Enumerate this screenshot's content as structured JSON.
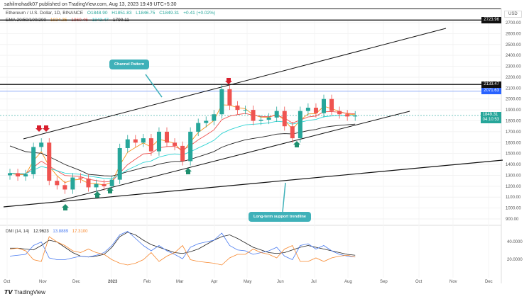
{
  "header": {
    "published": "sahilmohadk07 published on TradingView.com, Aug 13, 2023 19:49 UTC+5:30",
    "symbol": "Ethereum / U.S. Dollar, 1D, BINANCE",
    "open": "O1848.90",
    "high": "H1851.83",
    "low": "L1846.75",
    "close": "C1849.31",
    "change": "+0.41 (+0.02%)",
    "ema_label": "EMA 20/50/100/200",
    "ema_values": [
      "1834.35",
      "1860.46",
      "1843.47",
      "1790.11"
    ]
  },
  "currency": "USD",
  "colors": {
    "up": "#26a69a",
    "down": "#ef5350",
    "ema20": "#f7931a",
    "ema50": "#ef5350",
    "ema100": "#2ed3d3",
    "ema200": "#222222",
    "dmi_adx": "#222222",
    "dmi_plus": "#4a7bf0",
    "dmi_minus": "#f7872d",
    "callout": "#3fb1b9"
  },
  "levels": [
    {
      "value": 2723.96,
      "label": "2723.96",
      "color": "#111111"
    },
    {
      "value": 2133.47,
      "label": "2133.47",
      "color": "#111111"
    },
    {
      "value": 2071.63,
      "label": "2071.63",
      "color": "#2962ff"
    }
  ],
  "last_price": {
    "label": "1849.31",
    "countdown": "04:10:53"
  },
  "annotations": {
    "channel": "Channel Pattern",
    "support": "Long-term support trendline"
  },
  "dmi": {
    "label": "DMI (14, 14)",
    "values": [
      "12.9623",
      "13.8889",
      "17.3100"
    ],
    "ticks": [
      "40.0000",
      "20.0000"
    ]
  },
  "brand": "TradingView",
  "chart_data": {
    "type": "candlestick",
    "title": "Ethereum / U.S. Dollar, 1D, BINANCE",
    "ylim": [
      850,
      2780
    ],
    "y_ticks": [
      "2700.00",
      "2600.00",
      "2500.00",
      "2400.00",
      "2300.00",
      "2200.00",
      "2100.00",
      "2000.00",
      "1900.00",
      "1800.00",
      "1700.00",
      "1600.00",
      "1500.00",
      "1400.00",
      "1300.00",
      "1200.00",
      "1100.00",
      "1000.00",
      "900.00"
    ],
    "x_ticks": [
      "Oct",
      "Nov",
      "Dec",
      "2023",
      "Feb",
      "Mar",
      "Apr",
      "May",
      "Jun",
      "Jul",
      "Aug",
      "Sep",
      "Oct",
      "Nov",
      "Dec"
    ],
    "weekly_close": [
      1320,
      1290,
      1310,
      1560,
      1600,
      1250,
      1210,
      1170,
      1280,
      1270,
      1190,
      1220,
      1200,
      1260,
      1550,
      1630,
      1600,
      1640,
      1520,
      1700,
      1600,
      1570,
      1430,
      1700,
      1780,
      1800,
      1860,
      2090,
      1940,
      1900,
      1900,
      1800,
      1810,
      1830,
      1890,
      1750,
      1640,
      1890,
      1920,
      1870,
      2000,
      1890,
      1860,
      1840,
      1849
    ],
    "dmi_adx": [
      27,
      27,
      26,
      25,
      30,
      36,
      34,
      28,
      22,
      18,
      17,
      18,
      20,
      28,
      40,
      45,
      42,
      36,
      31,
      28,
      25,
      22,
      21,
      23,
      26,
      31,
      36,
      40,
      42,
      38,
      33,
      28,
      25,
      22,
      21,
      22,
      25,
      28,
      30,
      28,
      26,
      24,
      22,
      20,
      19
    ],
    "dmi_plus": [
      18,
      19,
      20,
      30,
      34,
      16,
      14,
      14,
      16,
      18,
      17,
      19,
      22,
      30,
      42,
      46,
      38,
      30,
      24,
      30,
      24,
      20,
      15,
      28,
      32,
      34,
      36,
      44,
      30,
      25,
      24,
      20,
      22,
      24,
      28,
      18,
      14,
      30,
      32,
      26,
      30,
      24,
      20,
      18,
      17
    ],
    "dmi_minus": [
      26,
      27,
      24,
      14,
      12,
      40,
      34,
      30,
      24,
      22,
      26,
      22,
      20,
      14,
      10,
      8,
      10,
      14,
      22,
      12,
      18,
      22,
      30,
      14,
      12,
      11,
      10,
      8,
      16,
      20,
      20,
      26,
      22,
      20,
      16,
      26,
      30,
      12,
      12,
      16,
      12,
      16,
      18,
      19,
      17
    ],
    "buy_markers": [
      "2022-11-21",
      "2022-12-05",
      "2022-12-19",
      "2023-03-13",
      "2023-06-15"
    ],
    "sell_markers": [
      "2022-11-03",
      "2022-11-07",
      "2023-04-16"
    ]
  }
}
